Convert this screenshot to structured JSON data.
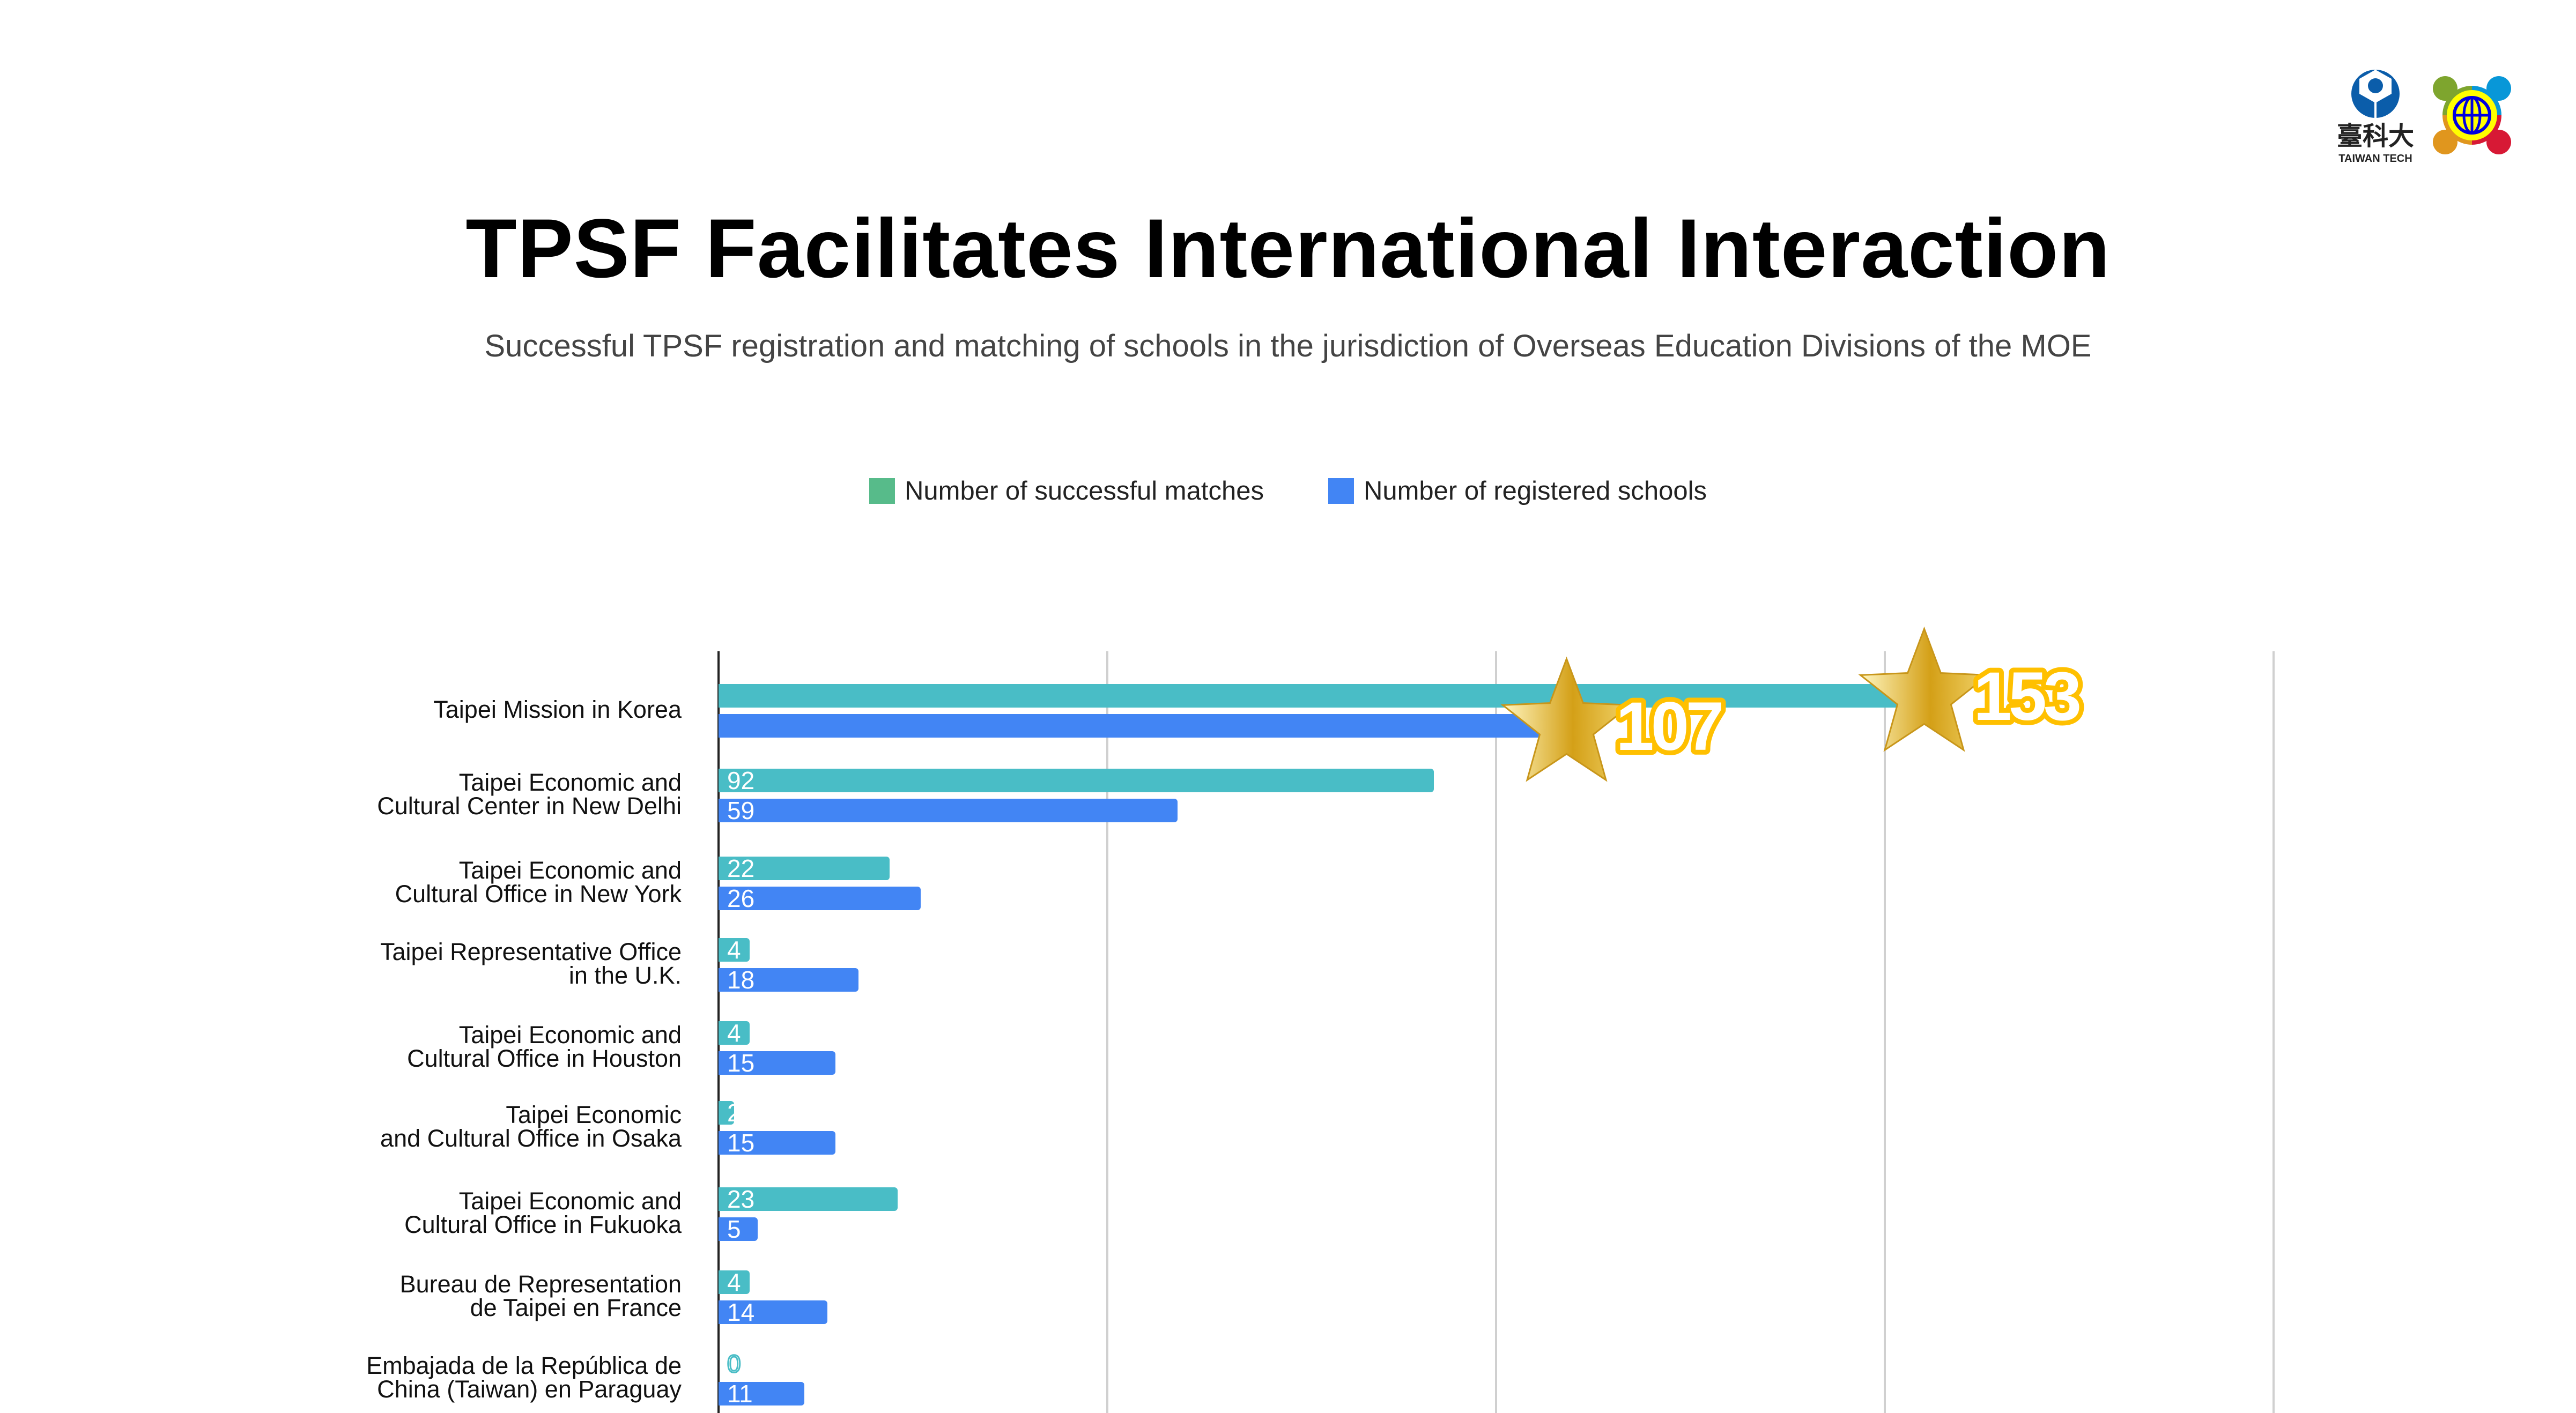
{
  "logos": {
    "school_cn": "臺科大",
    "school_en": "TAIWAN TECH"
  },
  "colors": {
    "matches": "#49BDC6",
    "matches_legend": "#57BB8A",
    "registered": "#4285F4",
    "star_label": "#FFC000"
  },
  "chart_data": {
    "type": "bar",
    "orientation": "horizontal",
    "title": "TPSF Facilitates International Interaction",
    "subtitle": "Successful TPSF registration and matching of schools in the jurisdiction of Overseas Education Divisions of the MOE",
    "legend_position": "top",
    "grid": true,
    "xlim": [
      0,
      200
    ],
    "x_gridlines": [
      0,
      50,
      100,
      150,
      200
    ],
    "categories": [
      "Taipei Mission in Korea",
      "Taipei Economic and\nCultural Center in New Delhi",
      "Taipei Economic and\nCultural Office in New York",
      "Taipei Representative Office\nin the U.K.",
      "Taipei Economic and\nCultural Office in Houston",
      "Taipei Economic\nand Cultural Office in Osaka",
      "Taipei Economic and\nCultural Office in Fukuoka",
      "Bureau de Representation\nde Taipei en France",
      "Embajada de la República de\nChina (Taiwan) en Paraguay"
    ],
    "series": [
      {
        "name": "Number of successful matches",
        "values": [
          153,
          92,
          22,
          4,
          4,
          2,
          23,
          4,
          0
        ]
      },
      {
        "name": "Number of registered schools",
        "values": [
          107,
          59,
          26,
          18,
          15,
          15,
          5,
          14,
          11
        ]
      }
    ],
    "highlight_labels": [
      "153",
      "107"
    ]
  }
}
